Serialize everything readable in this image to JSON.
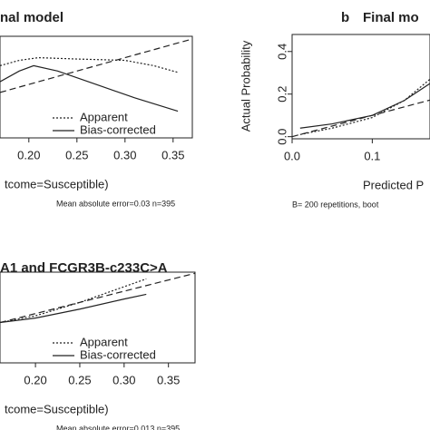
{
  "chart_data": [
    {
      "type": "line",
      "title": "nal model",
      "xlabel": "tcome=Susceptible)",
      "note": "Mean absolute error=0.03 n=395",
      "xlim": [
        0.17,
        0.37
      ],
      "ylim": [
        0,
        0.38
      ],
      "xticks": [
        {
          "value": 0.2,
          "label": "0.20"
        },
        {
          "value": 0.25,
          "label": "0.25"
        },
        {
          "value": 0.3,
          "label": "0.30"
        },
        {
          "value": 0.35,
          "label": "0.35"
        }
      ],
      "legend": true,
      "series": [
        {
          "name": "Apparent",
          "color": "#222222",
          "dash": "dotted",
          "x": [
            0.17,
            0.19,
            0.21,
            0.25,
            0.3,
            0.33,
            0.355
          ],
          "values": [
            0.27,
            0.29,
            0.3,
            0.295,
            0.29,
            0.27,
            0.245
          ]
        },
        {
          "name": "Bias-corrected",
          "color": "#222222",
          "dash": "solid",
          "x": [
            0.17,
            0.19,
            0.205,
            0.23,
            0.27,
            0.31,
            0.355
          ],
          "values": [
            0.21,
            0.25,
            0.27,
            0.25,
            0.2,
            0.15,
            0.1
          ]
        },
        {
          "color": "#222222",
          "dash": "dashed",
          "x": [
            0.17,
            0.37
          ],
          "values": [
            0.17,
            0.37
          ]
        }
      ]
    },
    {
      "type": "line",
      "label": "b",
      "title": "Final mo",
      "xlabel": "Predicted P",
      "ylabel": "Actual Probability",
      "note": "B= 200 repetitions, boot",
      "xlim": [
        0,
        0.172
      ],
      "ylim": [
        -0.01,
        0.48
      ],
      "xticks": [
        {
          "value": 0,
          "label": "0.0"
        },
        0.1
      ],
      "yticks": [
        {
          "value": 0,
          "label": "0.0"
        },
        0.2,
        0.4
      ],
      "legend": false,
      "series": [
        {
          "name": "Apparent",
          "color": "#222222",
          "dash": "dotted",
          "x": [
            0.01,
            0.05,
            0.1,
            0.14,
            0.172
          ],
          "values": [
            0.01,
            0.04,
            0.09,
            0.17,
            0.27
          ]
        },
        {
          "name": "Bias-corrected",
          "color": "#222222",
          "dash": "solid",
          "x": [
            0.01,
            0.05,
            0.1,
            0.14,
            0.172
          ],
          "values": [
            0.04,
            0.06,
            0.1,
            0.17,
            0.25
          ]
        },
        {
          "color": "#222222",
          "dash": "dashed",
          "x": [
            0,
            0.172
          ],
          "values": [
            0,
            0.172
          ]
        }
      ]
    },
    {
      "type": "line",
      "title": "A1 and FCGR3B-c233C>A",
      "xlabel": "tcome=Susceptible)",
      "note": "Mean absolute error=0.013 n=395",
      "xlim": [
        0.16,
        0.38
      ],
      "ylim": [
        -0.02,
        0.385
      ],
      "xticks": [
        {
          "value": 0.2,
          "label": "0.20"
        },
        {
          "value": 0.25,
          "label": "0.25"
        },
        {
          "value": 0.3,
          "label": "0.30"
        },
        {
          "value": 0.35,
          "label": "0.35"
        }
      ],
      "legend": true,
      "series": [
        {
          "name": "Apparent",
          "color": "#222222",
          "dash": "dotted",
          "x": [
            0.16,
            0.2,
            0.25,
            0.3,
            0.325
          ],
          "values": [
            0.16,
            0.19,
            0.25,
            0.32,
            0.355
          ]
        },
        {
          "name": "Bias-corrected",
          "color": "#222222",
          "dash": "solid",
          "x": [
            0.16,
            0.2,
            0.25,
            0.3,
            0.325
          ],
          "values": [
            0.16,
            0.18,
            0.22,
            0.265,
            0.286
          ]
        },
        {
          "color": "#222222",
          "dash": "dashed",
          "x": [
            0.16,
            0.38
          ],
          "values": [
            0.16,
            0.38
          ]
        }
      ]
    }
  ]
}
